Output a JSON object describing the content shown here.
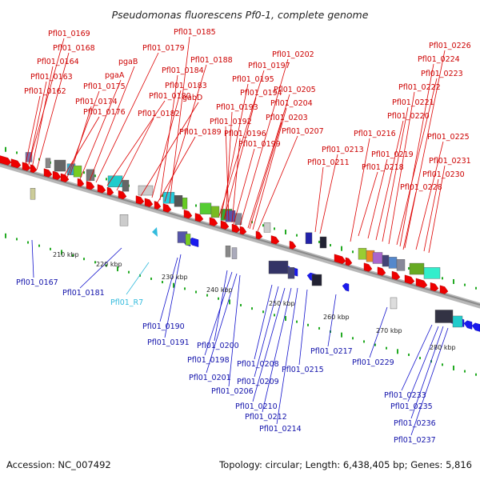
{
  "title": "Pseudomonas fluorescens Pf0-1, complete genome",
  "footer": {
    "accession": "Accession: NC_007492",
    "topology": "Topology: circular; Length: 6,438,405 bp; Genes: 5,816"
  },
  "scale_ticks": [
    "210 kbp",
    "220 kbp",
    "230 kbp",
    "240 kbp",
    "250 kbp",
    "260 kbp",
    "270 kbp",
    "280 kbp"
  ],
  "labels_forward": [
    "Pfl01_0169",
    "Pfl01_0168",
    "Pfl01_0164",
    "Pfl01_0163",
    "Pfl01_0162",
    "Pfl01_0175",
    "Pfl01_0174",
    "Pfl01_0176",
    "Pfl01_0179",
    "pgaB",
    "pgaA",
    "Pfl01_0180",
    "Pfl01_0182",
    "Pfl01_0185",
    "Pfl01_0188",
    "Pfl01_0184",
    "Pfl01_0183",
    "gabD",
    "Pfl01_0189",
    "Pfl01_0197",
    "Pfl01_0195",
    "Pfl01_0194",
    "Pfl01_0193",
    "Pfl01_0192",
    "Pfl01_0196",
    "Pfl01_0199",
    "Pfl01_0202",
    "Pfl01_0205",
    "Pfl01_0204",
    "Pfl01_0203",
    "Pfl01_0207",
    "Pfl01_0213",
    "Pfl01_0211",
    "Pfl01_0216",
    "Pfl01_0226",
    "Pfl01_0224",
    "Pfl01_0223",
    "Pfl01_0222",
    "Pfl01_0221",
    "Pfl01_0220",
    "Pfl01_0225",
    "Pfl01_0219",
    "Pfl01_0218",
    "Pfl01_0231",
    "Pfl01_0230",
    "Pfl01_0228"
  ],
  "labels_reverse": [
    "Pfl01_0167",
    "Pfl01_0181",
    "Pfl01_0190",
    "Pfl01_0191",
    "Pfl01_0200",
    "Pfl01_0198",
    "Pfl01_0201",
    "Pfl01_0206",
    "Pfl01_0208",
    "Pfl01_0209",
    "Pfl01_0210",
    "Pfl01_0212",
    "Pfl01_0214",
    "Pfl01_0215",
    "Pfl01_0217",
    "Pfl01_0229",
    "Pfl01_0233",
    "Pfl01_0235",
    "Pfl01_0236",
    "Pfl01_0237"
  ],
  "labels_rna": [
    "Pfl01_R7"
  ],
  "colors": {
    "forward_label": "#cc0000",
    "reverse_label": "#1111aa",
    "rna_label": "#33bbdd",
    "forward_gene": "#ee0000",
    "reverse_gene": "#1a1aee",
    "backbone": "#999999",
    "tick": "#22aa22"
  }
}
